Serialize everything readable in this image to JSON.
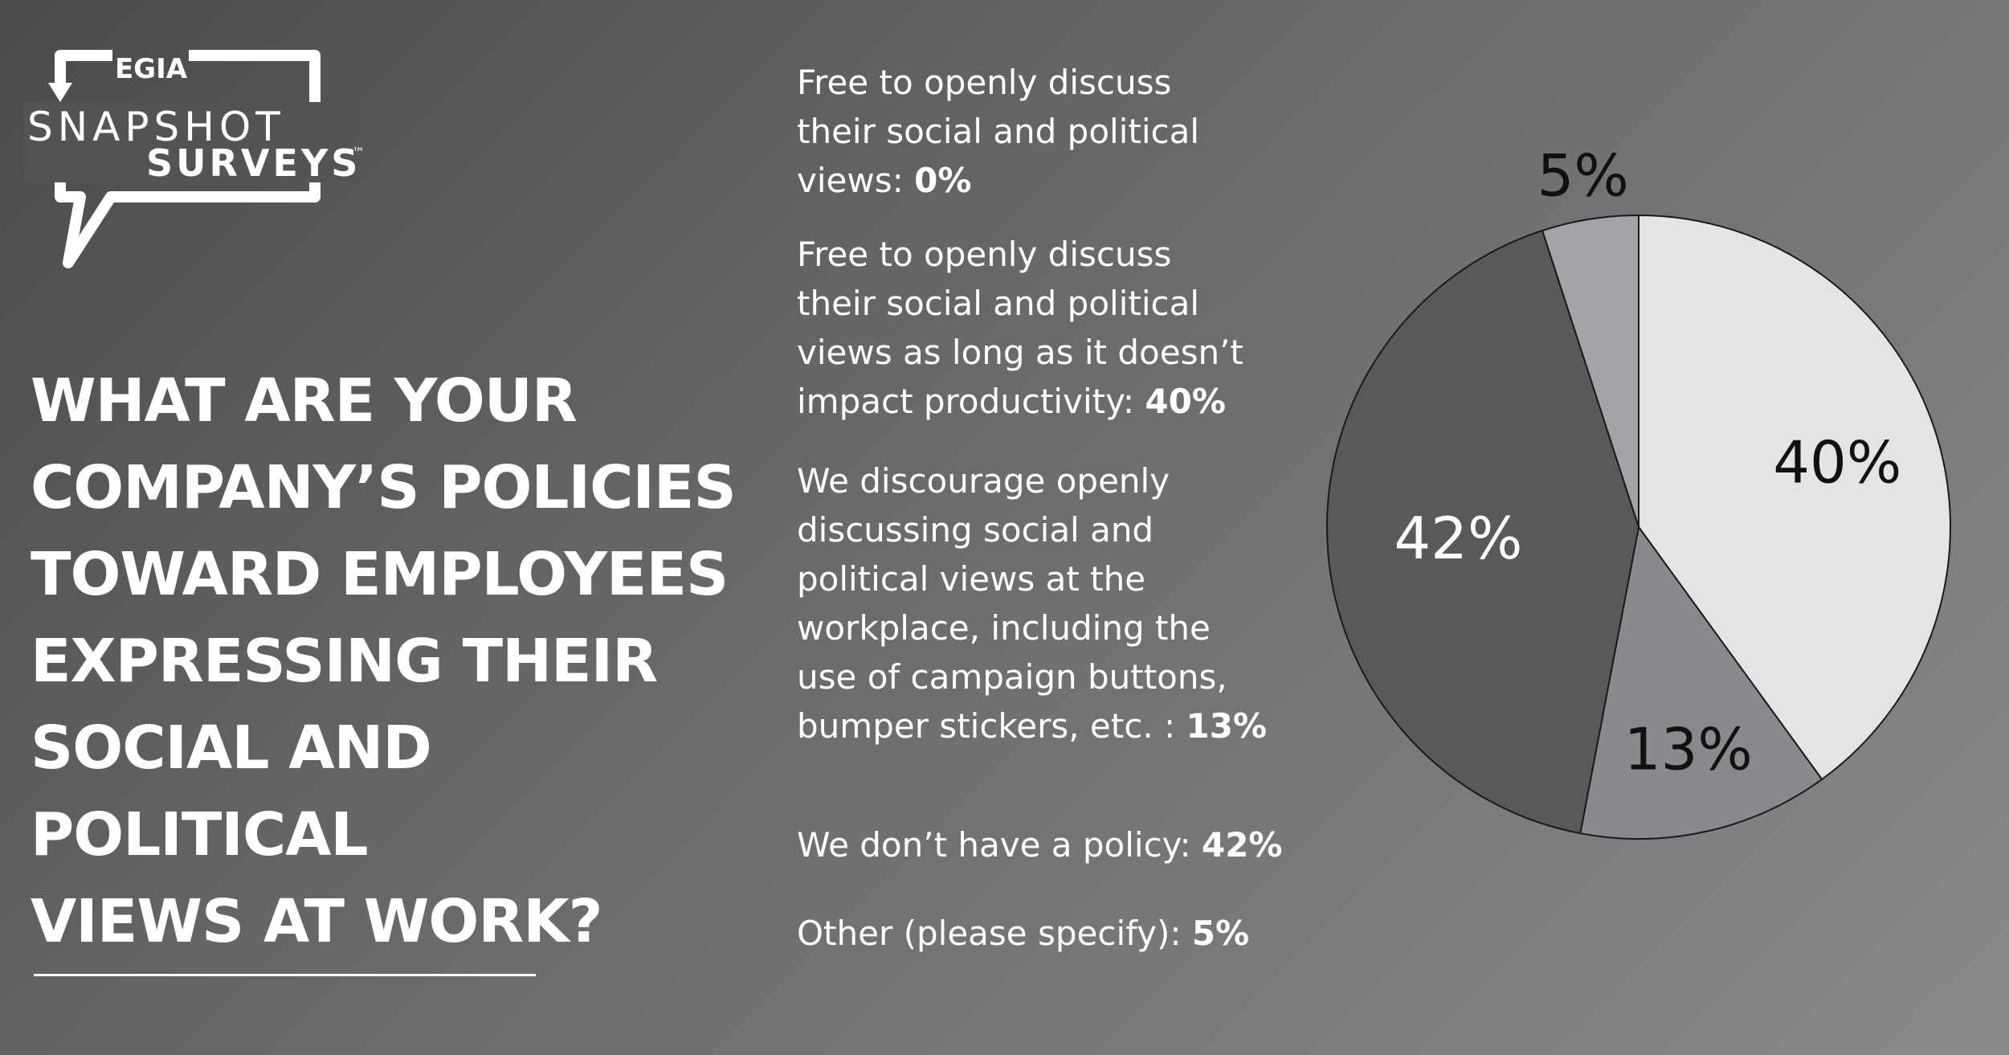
{
  "logo": {
    "egia": "EGIA",
    "snapshot": "SNAPSHOT",
    "surveys": "SURVEYS",
    "tm": "™"
  },
  "question": {
    "line1": "WHAT ARE YOUR",
    "line2": "COMPANY’S POLICIES",
    "line3": "TOWARD EMPLOYEES",
    "line4": "EXPRESSING THEIR",
    "line5": "SOCIAL AND POLITICAL",
    "line6": "VIEWS AT WORK?"
  },
  "legend": [
    {
      "lines": [
        "Free to openly discuss",
        "their social and political",
        "views: "
      ],
      "pct": "0%"
    },
    {
      "lines": [
        "Free to openly discuss",
        "their social and political",
        "views as long as it doesn’t",
        "impact productivity: "
      ],
      "pct": "40%"
    },
    {
      "lines": [
        "We discourage openly",
        "discussing social and",
        "political views at the",
        "workplace, including the",
        "use of campaign buttons,",
        "bumper stickers, etc. : "
      ],
      "pct": "13%"
    },
    {
      "lines": [
        "We don’t have a policy: "
      ],
      "pct": "42%"
    },
    {
      "lines": [
        "Other (please specify): "
      ],
      "pct": "5%"
    }
  ],
  "chart_data": {
    "type": "pie",
    "categories": [
      "Free to openly discuss their social and political views",
      "Free to openly discuss their social and political views as long as it doesn’t impact productivity",
      "We discourage openly discussing social and political views at the workplace, including the use of campaign buttons, bumper stickers, etc.",
      "We don’t have a policy",
      "Other (please specify)"
    ],
    "values": [
      0,
      40,
      13,
      42,
      5
    ],
    "labels": [
      "0%",
      "40%",
      "13%",
      "42%",
      "5%"
    ],
    "colors": [
      "#e4e4e6",
      "#e4e4e6",
      "#8a8a8e",
      "#59595c",
      "#a4a4a8"
    ],
    "label_colors": [
      "#111111",
      "#111111",
      "#111111",
      "#ffffff",
      "#111111"
    ],
    "start_angle_deg": 0,
    "direction": "clockwise",
    "legend_position": "left"
  }
}
